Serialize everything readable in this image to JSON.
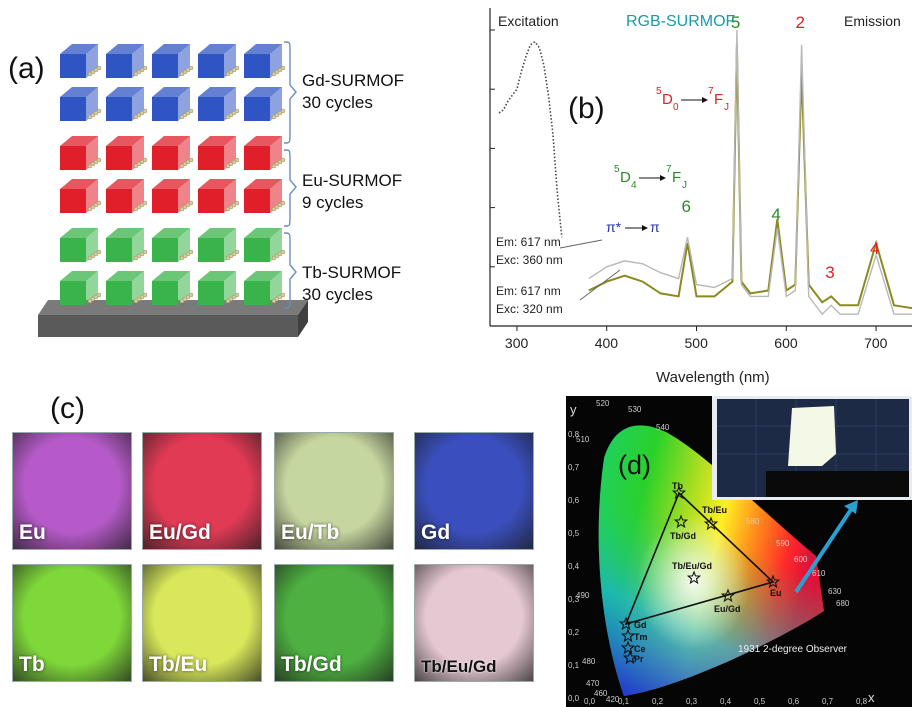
{
  "panel_a": {
    "label": "(a)",
    "layers": [
      {
        "name": "Gd-SURMOF",
        "cycles": "30 cycles",
        "color": "#2f55c4"
      },
      {
        "name": "Eu-SURMOF",
        "cycles": "9 cycles",
        "color": "#e01f2a"
      },
      {
        "name": "Tb-SURMOF",
        "cycles": "30 cycles",
        "color": "#39b44a"
      }
    ]
  },
  "panel_b": {
    "label": "(b)",
    "title": "RGB-SURMOF",
    "excitation_label": "Excitation",
    "emission_label": "Emission",
    "xlabel": "Wavelength (nm)",
    "xticks": [
      "300",
      "400",
      "500",
      "600",
      "700"
    ],
    "tb_transition": {
      "upper": "5",
      "state_upper": "D",
      "sub_upper": "4",
      "lower": "7",
      "state_lower": "F",
      "sub_lower": "J"
    },
    "eu_transition": {
      "upper": "5",
      "state_upper": "D",
      "sub_upper": "0",
      "lower": "7",
      "state_lower": "F",
      "sub_lower": "J"
    },
    "pi_transition": {
      "from": "π*",
      "to": "π"
    },
    "peak_labels": [
      {
        "text": "6",
        "color": "#2a8a2a"
      },
      {
        "text": "5",
        "color": "#2a8a2a"
      },
      {
        "text": "4",
        "color": "#2a8a2a"
      },
      {
        "text": "2",
        "color": "#dd2222"
      },
      {
        "text": "3",
        "color": "#dd2222"
      },
      {
        "text": "4",
        "color": "#dd2222"
      }
    ],
    "annotation_360": {
      "line1": "Em: 617 nm",
      "line2": "Exc: 360 nm"
    },
    "annotation_320": {
      "line1": "Em: 617 nm",
      "line2": "Exc: 320 nm"
    }
  },
  "chart_data": {
    "type": "line",
    "title": "RGB-SURMOF",
    "xlabel": "Wavelength (nm)",
    "ylabel": "",
    "xlim": [
      270,
      740
    ],
    "series": [
      {
        "name": "Excitation",
        "x": [
          280,
          285,
          290,
          295,
          300,
          305,
          310,
          315,
          320,
          325,
          330,
          335,
          340,
          345,
          350
        ],
        "y": [
          0.72,
          0.73,
          0.76,
          0.78,
          0.8,
          0.86,
          0.91,
          0.95,
          0.96,
          0.94,
          0.88,
          0.78,
          0.65,
          0.45,
          0.3
        ]
      },
      {
        "name": "Exc: 320 nm",
        "x": [
          380,
          400,
          420,
          440,
          460,
          480,
          490,
          500,
          520,
          540,
          545,
          550,
          560,
          580,
          590,
          600,
          610,
          617,
          625,
          640,
          650,
          660,
          680,
          700,
          720,
          740
        ],
        "y": [
          0.12,
          0.15,
          0.17,
          0.15,
          0.11,
          0.1,
          0.28,
          0.1,
          0.1,
          0.15,
          0.95,
          0.15,
          0.11,
          0.12,
          0.36,
          0.12,
          0.14,
          0.86,
          0.14,
          0.08,
          0.1,
          0.07,
          0.07,
          0.28,
          0.07,
          0.06
        ]
      },
      {
        "name": "Exc: 360 nm",
        "x": [
          380,
          400,
          420,
          440,
          460,
          480,
          490,
          500,
          520,
          540,
          545,
          550,
          560,
          580,
          590,
          600,
          610,
          617,
          625,
          640,
          650,
          660,
          680,
          700,
          720,
          740
        ],
        "y": [
          0.16,
          0.2,
          0.22,
          0.21,
          0.18,
          0.16,
          0.3,
          0.14,
          0.13,
          0.16,
          1.0,
          0.14,
          0.1,
          0.1,
          0.33,
          0.1,
          0.12,
          0.95,
          0.1,
          0.04,
          0.07,
          0.04,
          0.04,
          0.24,
          0.04,
          0.04
        ]
      }
    ]
  },
  "panel_c": {
    "label": "(c)",
    "tiles": [
      {
        "label": "Eu",
        "bg": "#b55ac8"
      },
      {
        "label": "Eu/Gd",
        "bg": "#e03a55"
      },
      {
        "label": "Eu/Tb",
        "bg": "#c6d6a0"
      },
      {
        "label": "Gd",
        "bg": "#3a4fbd"
      },
      {
        "label": "Tb",
        "bg": "#7fd83a"
      },
      {
        "label": "Tb/Eu",
        "bg": "#d9e85a"
      },
      {
        "label": "Tb/Gd",
        "bg": "#4db040"
      },
      {
        "label": "Tb/Eu/Gd",
        "bg": "#e6c8d2"
      }
    ]
  },
  "panel_d": {
    "label": "(d)",
    "axis_y": "y",
    "axis_x": "x",
    "observer": "1931 2-degree Observer",
    "yticks": [
      "0,0",
      "0,1",
      "0,2",
      "0,3",
      "0,4",
      "0,5",
      "0,6",
      "0,7",
      "0,8"
    ],
    "xticks": [
      "0,0",
      "0,1",
      "0,2",
      "0,3",
      "0,4",
      "0,5",
      "0,6",
      "0,7",
      "0,8"
    ],
    "wavelengths": [
      "520",
      "530",
      "540",
      "510",
      "580",
      "590",
      "600",
      "610",
      "630",
      "680",
      "490",
      "480",
      "470",
      "460",
      "420"
    ],
    "points": [
      {
        "label": "Tb"
      },
      {
        "label": "Tb/Eu"
      },
      {
        "label": "Tb/Gd"
      },
      {
        "label": "Tb/Eu/Gd"
      },
      {
        "label": "Eu"
      },
      {
        "label": "Eu/Gd"
      },
      {
        "label": "Gd"
      },
      {
        "label": "Tm"
      },
      {
        "label": "Ce"
      },
      {
        "label": "Pr"
      }
    ]
  }
}
